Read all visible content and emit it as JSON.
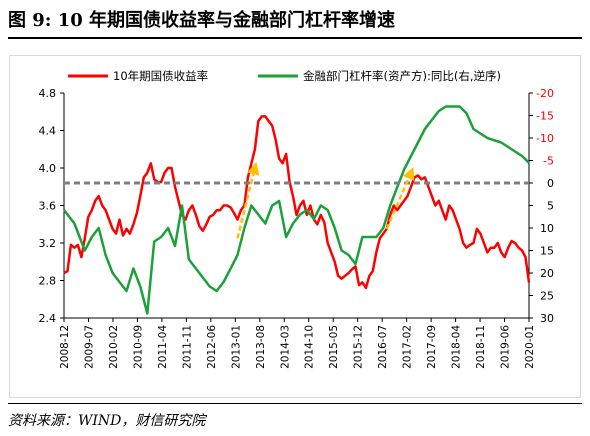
{
  "figure": {
    "title": "图 9:  10 年期国债收益率与金融部门杠杆率增速",
    "source": "资料来源：WIND，财信研究院"
  },
  "chart_data": {
    "type": "line",
    "legend_position": "top",
    "grid": false,
    "x_ticks": [
      "2008-12",
      "2009-07",
      "2010-02",
      "2010-09",
      "2011-04",
      "2011-11",
      "2012-06",
      "2013-01",
      "2013-08",
      "2014-03",
      "2014-10",
      "2015-05",
      "2015-12",
      "2016-07",
      "2017-02",
      "2017-09",
      "2018-04",
      "2018-11",
      "2019-06",
      "2020-01"
    ],
    "x_range": [
      0,
      134
    ],
    "y_left": {
      "ticks": [
        "4.8",
        "4.4",
        "4.0",
        "3.6",
        "3.2",
        "2.8",
        "2.4"
      ],
      "range": [
        2.4,
        4.8
      ]
    },
    "y_right": {
      "ticks": [
        "-20",
        "-15",
        "-10",
        "-5",
        "0",
        "5",
        "10",
        "15",
        "20",
        "25",
        "30"
      ],
      "range": [
        -20,
        30
      ],
      "inverted": true
    },
    "series": [
      {
        "name": "10年期国债收益率",
        "axis": "left",
        "color": "#ff0000",
        "x": [
          0,
          1,
          2,
          3,
          4,
          5,
          6,
          7,
          8,
          9,
          10,
          11,
          12,
          13,
          14,
          15,
          16,
          17,
          18,
          19,
          20,
          21,
          22,
          23,
          24,
          25,
          26,
          27,
          28,
          29,
          30,
          31,
          32,
          33,
          34,
          35,
          36,
          37,
          38,
          39,
          40,
          41,
          42,
          43,
          44,
          45,
          46,
          47,
          48,
          49,
          50,
          51,
          52,
          53,
          54,
          55,
          56,
          57,
          58,
          59,
          60,
          61,
          62,
          63,
          64,
          65,
          66,
          67,
          68,
          69,
          70,
          71,
          72,
          73,
          74,
          75,
          76,
          77,
          78,
          79,
          80,
          81,
          82,
          83,
          84,
          85,
          86,
          87,
          88,
          89,
          90,
          91,
          92,
          93,
          94,
          95,
          96,
          97,
          98,
          99,
          100,
          101,
          102,
          103,
          104,
          105,
          106,
          107,
          108,
          109,
          110,
          111,
          112,
          113,
          114,
          115,
          116,
          117,
          118,
          119,
          120,
          121,
          122,
          123,
          124,
          125,
          126,
          127,
          128,
          129,
          130,
          131,
          132,
          133,
          134
        ],
        "values": [
          2.88,
          2.9,
          3.18,
          3.15,
          3.18,
          3.05,
          3.25,
          3.48,
          3.55,
          3.65,
          3.7,
          3.6,
          3.55,
          3.45,
          3.35,
          3.3,
          3.45,
          3.28,
          3.35,
          3.3,
          3.4,
          3.52,
          3.7,
          3.9,
          3.95,
          4.05,
          3.88,
          3.85,
          3.85,
          3.95,
          4.0,
          4.0,
          3.8,
          3.65,
          3.5,
          3.45,
          3.55,
          3.6,
          3.5,
          3.38,
          3.33,
          3.4,
          3.48,
          3.5,
          3.55,
          3.55,
          3.6,
          3.6,
          3.58,
          3.52,
          3.45,
          3.55,
          3.6,
          3.9,
          4.05,
          4.2,
          4.5,
          4.55,
          4.55,
          4.5,
          4.45,
          4.3,
          4.1,
          4.05,
          4.15,
          3.85,
          3.7,
          3.5,
          3.6,
          3.65,
          3.5,
          3.6,
          3.45,
          3.4,
          3.5,
          3.42,
          3.2,
          3.1,
          3.0,
          2.85,
          2.82,
          2.85,
          2.88,
          2.92,
          2.95,
          2.75,
          2.78,
          2.72,
          2.85,
          2.9,
          3.1,
          3.25,
          3.3,
          3.35,
          3.5,
          3.6,
          3.55,
          3.6,
          3.65,
          3.7,
          3.8,
          3.9,
          3.92,
          3.88,
          3.9,
          3.8,
          3.7,
          3.6,
          3.65,
          3.55,
          3.45,
          3.6,
          3.55,
          3.45,
          3.35,
          3.2,
          3.15,
          3.18,
          3.2,
          3.35,
          3.3,
          3.2,
          3.1,
          3.15,
          3.15,
          3.2,
          3.1,
          3.05,
          3.15,
          3.22,
          3.2,
          3.15,
          3.12,
          3.05,
          2.78
        ]
      },
      {
        "name": "金融部门杠杆率(资产方):同比(右,逆序)",
        "axis": "right",
        "color": "#1ca13a",
        "x": [
          0,
          3,
          6,
          8,
          10,
          12,
          14,
          16,
          18,
          20,
          22,
          24,
          26,
          28,
          30,
          32,
          34,
          36,
          38,
          40,
          42,
          44,
          46,
          48,
          50,
          52,
          54,
          56,
          58,
          60,
          62,
          64,
          66,
          68,
          70,
          72,
          74,
          76,
          78,
          80,
          82,
          84,
          86,
          88,
          90,
          92,
          94,
          96,
          98,
          100,
          102,
          104,
          106,
          108,
          110,
          112,
          114,
          116,
          118,
          120,
          122,
          124,
          126,
          128,
          130,
          132,
          134
        ],
        "values": [
          6,
          9,
          15,
          12,
          10,
          16,
          20,
          22,
          24,
          19,
          23,
          29,
          13,
          12,
          10,
          14,
          5,
          17,
          19,
          21,
          23,
          24,
          22,
          19,
          16,
          10,
          5,
          7,
          9,
          5,
          4,
          12,
          9,
          7,
          6,
          8,
          5,
          6,
          10,
          15,
          16,
          18,
          12,
          12,
          12,
          10,
          5,
          1,
          -3,
          -6,
          -9,
          -12,
          -14,
          -16,
          -17,
          -17,
          -17,
          -15.5,
          -12,
          -11,
          -10,
          -9.5,
          -9,
          -8,
          -7,
          -6,
          -4.5
        ]
      },
      {
        "name": "reference",
        "axis": "right",
        "color": "#7f7f7f",
        "dashed": true,
        "x": [
          0,
          134
        ],
        "values": [
          0,
          0
        ]
      }
    ],
    "arrows": [
      {
        "color": "#ffc000",
        "from": [
          50,
          3.25
        ],
        "to": [
          55,
          4.0
        ]
      },
      {
        "color": "#ffc000",
        "from": [
          93,
          3.35
        ],
        "to": [
          100,
          3.95
        ]
      }
    ]
  }
}
